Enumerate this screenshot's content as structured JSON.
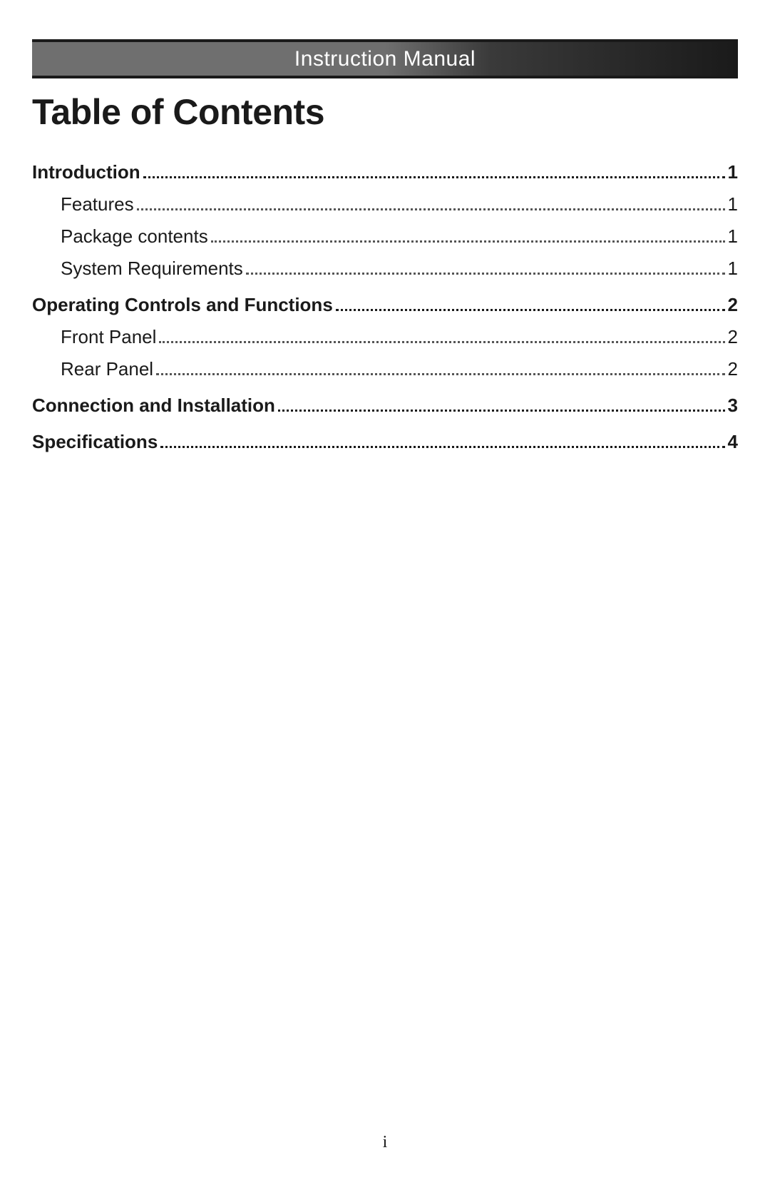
{
  "header": {
    "title": "Instruction Manual",
    "background_gradient": [
      "#6f6f6f",
      "#6f6f6f",
      "#3a3a3a",
      "#1a1a1a"
    ],
    "border_color": "#1a1a1a",
    "text_color": "#ffffff",
    "font_size": 30
  },
  "main_title": {
    "text": "Table of Contents",
    "font_size": 50,
    "color": "#1a1a1a"
  },
  "toc": {
    "section_font_size": 26,
    "section_weight": 700,
    "sub_font_size": 26,
    "sub_weight": 400,
    "sub_indent": 40,
    "leader_color_section": "#1a1a1a",
    "leader_color_sub": "#555555",
    "entries": [
      {
        "label": "Introduction",
        "page": "1",
        "children": [
          {
            "label": "Features",
            "page": "1"
          },
          {
            "label": "Package contents",
            "page": "1"
          },
          {
            "label": "System Requirements",
            "page": "1"
          }
        ]
      },
      {
        "label": "Operating Controls and Functions",
        "page": "2",
        "children": [
          {
            "label": "Front Panel",
            "page": "2"
          },
          {
            "label": "Rear Panel",
            "page": "2"
          }
        ]
      },
      {
        "label": "Connection and Installation",
        "page": "3",
        "children": []
      },
      {
        "label": "Specifications",
        "page": "4",
        "children": []
      }
    ]
  },
  "page_number": "i",
  "page_background": "#ffffff"
}
